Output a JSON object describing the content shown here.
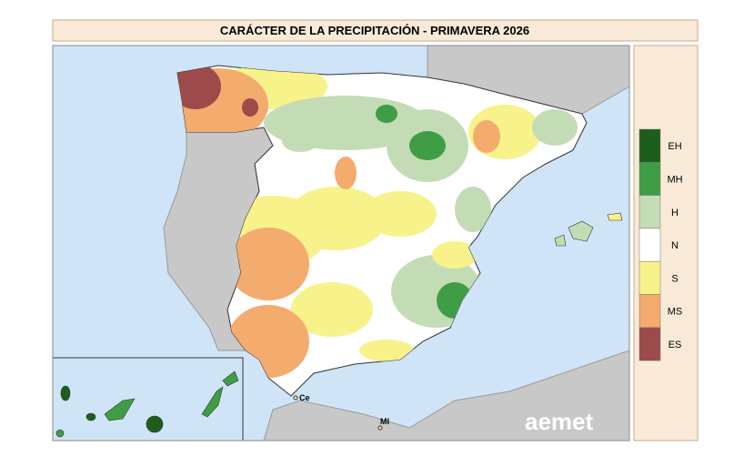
{
  "title": "CARÁCTER DE LA PRECIPITACIÓN - PRIMAVERA 2026",
  "legend": {
    "items": [
      {
        "label": "EH",
        "color": "#1d5e1d"
      },
      {
        "label": "MH",
        "color": "#3f9e45"
      },
      {
        "label": "H",
        "color": "#c3dcb6"
      },
      {
        "label": "N",
        "color": "#ffffff"
      },
      {
        "label": "S",
        "color": "#f7f28a"
      },
      {
        "label": "MS",
        "color": "#f4ab6e"
      },
      {
        "label": "ES",
        "color": "#9c4a4c"
      }
    ]
  },
  "map_labels": {
    "ceuta": "Ce",
    "melilla": "MI"
  },
  "logo": "aemet"
}
